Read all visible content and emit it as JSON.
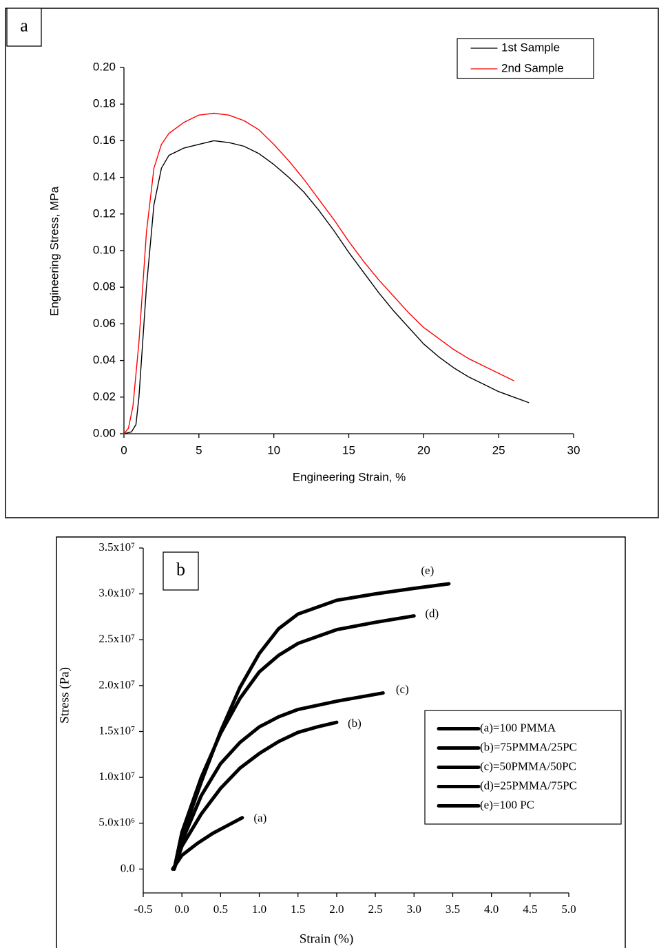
{
  "chart_data": [
    {
      "type": "line",
      "panel_label": "a",
      "x_label": "Engineering Strain, %",
      "y_label": "Engineering Stress, MPa",
      "xlim": [
        0,
        30
      ],
      "xticks": [
        0,
        5,
        10,
        15,
        20,
        25,
        30
      ],
      "ylim": [
        0,
        0.2
      ],
      "yticks": [
        {
          "value": 0,
          "label": "0.00"
        },
        0.02,
        0.04,
        0.06,
        0.08,
        {
          "value": 0.1,
          "label": "0.10"
        },
        0.12,
        0.14,
        0.16,
        0.18,
        {
          "value": 0.2,
          "label": "0.20"
        }
      ],
      "legend": "upper right",
      "series": [
        {
          "name": "1st Sample",
          "color": "#000000",
          "x": [
            0,
            0.5,
            0.8,
            1,
            1.5,
            2,
            2.5,
            3,
            4,
            5,
            6,
            7,
            8,
            9,
            10,
            11,
            12,
            13,
            14,
            15,
            16,
            17,
            18,
            19,
            20,
            21,
            22,
            23,
            24,
            25,
            26,
            27
          ],
          "values": [
            0,
            0.001,
            0.005,
            0.02,
            0.08,
            0.125,
            0.145,
            0.152,
            0.156,
            0.158,
            0.16,
            0.159,
            0.157,
            0.153,
            0.147,
            0.14,
            0.132,
            0.122,
            0.111,
            0.099,
            0.088,
            0.077,
            0.067,
            0.058,
            0.049,
            0.042,
            0.036,
            0.031,
            0.027,
            0.023,
            0.02,
            0.017
          ]
        },
        {
          "name": "2nd Sample",
          "color": "#ff0000",
          "x": [
            0,
            0.3,
            0.6,
            1,
            1.5,
            2,
            2.5,
            3,
            4,
            5,
            6,
            7,
            8,
            9,
            10,
            11,
            12,
            13,
            14,
            15,
            16,
            17,
            18,
            19,
            20,
            21,
            22,
            23,
            24,
            25,
            26
          ],
          "values": [
            0,
            0.003,
            0.015,
            0.05,
            0.11,
            0.145,
            0.158,
            0.164,
            0.17,
            0.174,
            0.175,
            0.174,
            0.171,
            0.166,
            0.158,
            0.149,
            0.139,
            0.128,
            0.117,
            0.105,
            0.094,
            0.084,
            0.075,
            0.066,
            0.058,
            0.052,
            0.046,
            0.041,
            0.037,
            0.033,
            0.029
          ]
        }
      ]
    },
    {
      "type": "line",
      "panel_label": "b",
      "x_label": "Strain (%)",
      "y_label": "Stress (Pa)",
      "xlim": [
        -0.5,
        5.0
      ],
      "xticks": [
        -0.5,
        {
          "value": 0,
          "label": "0.0"
        },
        0.5,
        {
          "value": 1,
          "label": "1.0"
        },
        1.5,
        {
          "value": 2,
          "label": "2.0"
        },
        2.5,
        {
          "value": 3,
          "label": "3.0"
        },
        3.5,
        {
          "value": 4,
          "label": "4.0"
        },
        4.5,
        {
          "value": 5,
          "label": "5.0"
        }
      ],
      "ylim": [
        -2600000,
        35000000
      ],
      "yticks": [
        {
          "value": 0,
          "label": "0.0"
        },
        {
          "value": 5000000,
          "label": "5.0x10⁶"
        },
        {
          "value": 10000000,
          "label": "1.0x10⁷"
        },
        {
          "value": 15000000,
          "label": "1.5x10⁷"
        },
        {
          "value": 20000000,
          "label": "2.0x10⁷"
        },
        {
          "value": 25000000,
          "label": "2.5x10⁷"
        },
        {
          "value": 30000000,
          "label": "3.0x10⁷"
        },
        {
          "value": 35000000,
          "label": "3.5x10⁷"
        }
      ],
      "legend": "center right",
      "series": [
        {
          "name": "(a)=100 PMMA",
          "annotation": "(a)",
          "color": "#000000",
          "x": [
            -0.12,
            0,
            0.2,
            0.4,
            0.6,
            0.78
          ],
          "values": [
            0,
            1500000,
            2800000,
            3900000,
            4800000,
            5600000
          ]
        },
        {
          "name": "(b)=75PMMA/25PC",
          "annotation": "(b)",
          "color": "#000000",
          "x": [
            -0.1,
            0,
            0.25,
            0.5,
            0.75,
            1.0,
            1.25,
            1.5,
            1.75,
            2.0
          ],
          "values": [
            0,
            2500000,
            6000000,
            8800000,
            11000000,
            12600000,
            13900000,
            14900000,
            15500000,
            16000000
          ]
        },
        {
          "name": "(c)=50PMMA/50PC",
          "annotation": "(c)",
          "color": "#000000",
          "x": [
            -0.1,
            0,
            0.25,
            0.5,
            0.75,
            1.0,
            1.25,
            1.5,
            2.0,
            2.6
          ],
          "values": [
            0,
            3000000,
            8000000,
            11500000,
            13800000,
            15500000,
            16600000,
            17400000,
            18300000,
            19200000
          ]
        },
        {
          "name": "(d)=25PMMA/75PC",
          "annotation": "(d)",
          "color": "#000000",
          "x": [
            -0.1,
            0,
            0.25,
            0.5,
            0.75,
            1.0,
            1.25,
            1.5,
            2.0,
            2.5,
            3.0
          ],
          "values": [
            0,
            4000000,
            10000000,
            14800000,
            18600000,
            21500000,
            23300000,
            24600000,
            26100000,
            26900000,
            27600000
          ]
        },
        {
          "name": "(e)=100 PC",
          "annotation": "(e)",
          "color": "#000000",
          "x": [
            -0.1,
            0,
            0.25,
            0.5,
            0.75,
            1.0,
            1.25,
            1.5,
            2.0,
            2.5,
            3.0,
            3.45
          ],
          "values": [
            0,
            3500000,
            9500000,
            15000000,
            19800000,
            23500000,
            26200000,
            27800000,
            29300000,
            30000000,
            30600000,
            31100000
          ]
        }
      ]
    }
  ]
}
